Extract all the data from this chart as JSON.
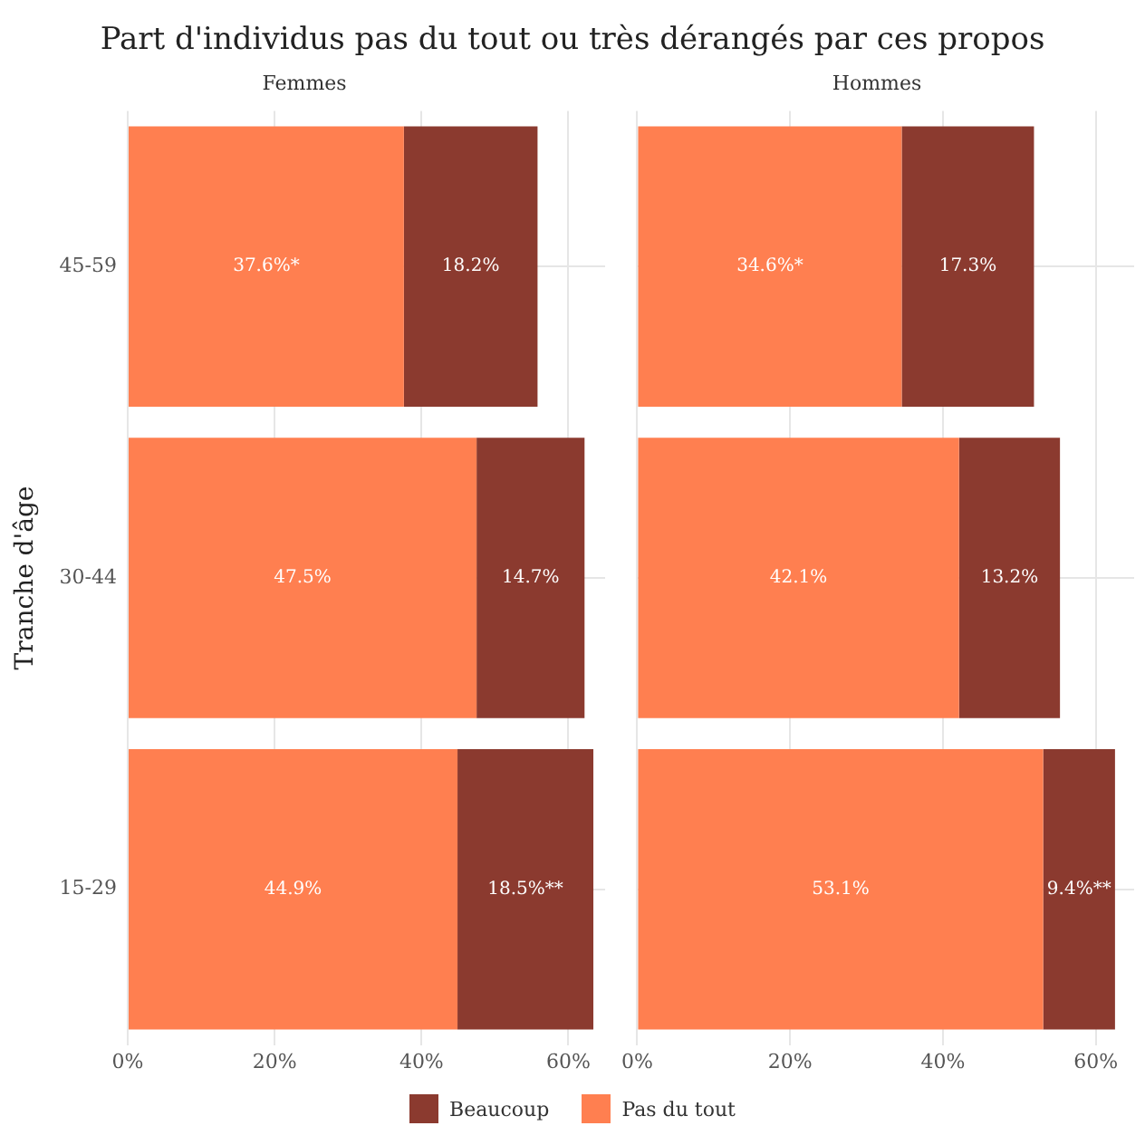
{
  "chart_data": [
    {
      "type": "bar",
      "title": "Part d'individus pas du tout ou très dérangés par ces propos",
      "subtitle": "Femmes",
      "ylabel": "Tranche d'âge",
      "orientation": "horizontal",
      "stacked": true,
      "categories": [
        "45-59",
        "30-44",
        "15-29"
      ],
      "series": [
        {
          "name": "Pas du tout",
          "color": "#ff7f50",
          "values": [
            37.6,
            47.5,
            44.9
          ],
          "value_labels": [
            "37.6%*",
            "47.5%",
            "44.9%"
          ]
        },
        {
          "name": "Beaucoup",
          "color": "#8b3a2f",
          "values": [
            18.2,
            14.7,
            18.5
          ],
          "value_labels": [
            "18.2%",
            "14.7%",
            "18.5%**"
          ]
        }
      ],
      "xlim": [
        0,
        65
      ],
      "xticks": [
        {
          "value": 0,
          "label": "0%"
        },
        {
          "value": 20,
          "label": "20%"
        },
        {
          "value": 40,
          "label": "40%"
        },
        {
          "value": 60,
          "label": "60%"
        }
      ],
      "grid": true,
      "legend": "bottom"
    },
    {
      "type": "bar",
      "subtitle": "Hommes",
      "orientation": "horizontal",
      "stacked": true,
      "categories": [
        null,
        null,
        null
      ],
      "series": [
        {
          "color": "#ff7f50",
          "values": [
            34.6,
            42.1,
            53.1
          ],
          "value_labels": [
            "34.6%*",
            "42.1%",
            "53.1%"
          ]
        },
        {
          "color": "#8b3a2f",
          "values": [
            17.3,
            13.2,
            9.4
          ],
          "value_labels": [
            "17.3%",
            "13.2%",
            "9.4%**"
          ]
        }
      ],
      "xlim": [
        0,
        65
      ],
      "xticks": [
        {
          "value": 0,
          "label": "0%"
        },
        {
          "value": 20,
          "label": "20%"
        },
        {
          "value": 40,
          "label": "40%"
        },
        {
          "value": 60,
          "label": "60%"
        }
      ],
      "grid": true,
      "tick_labels": "x"
    }
  ]
}
